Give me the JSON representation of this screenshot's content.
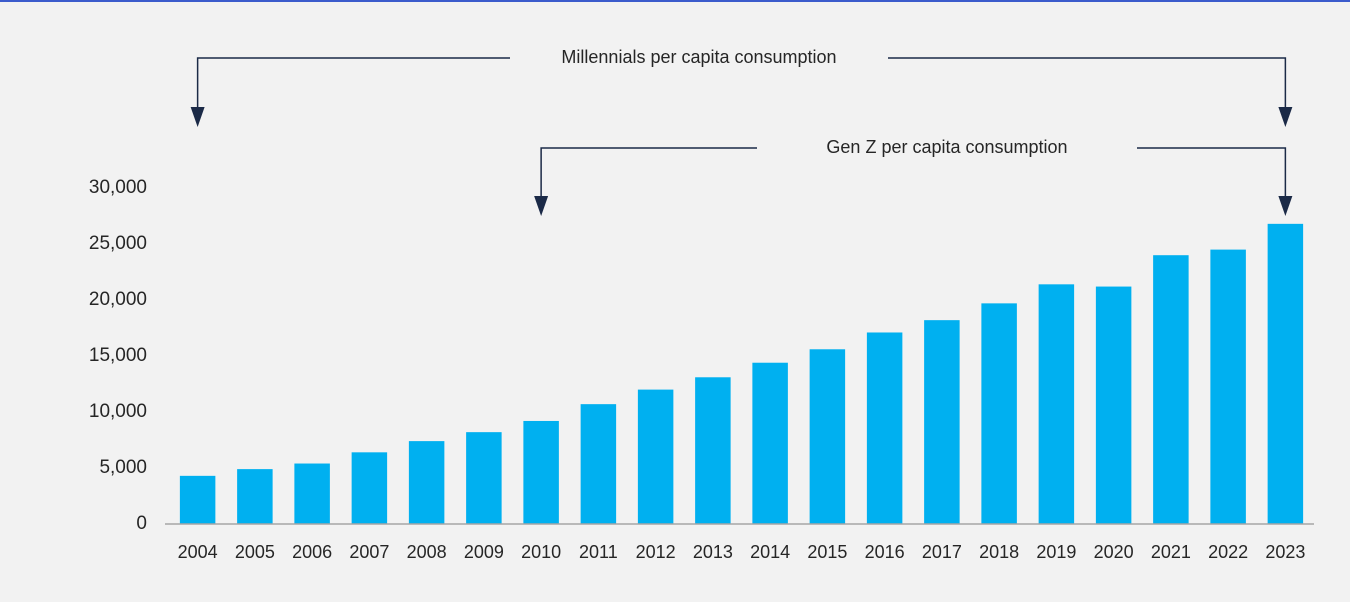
{
  "chart_data": {
    "type": "bar",
    "categories": [
      "2004",
      "2005",
      "2006",
      "2007",
      "2008",
      "2009",
      "2010",
      "2011",
      "2012",
      "2013",
      "2014",
      "2015",
      "2016",
      "2017",
      "2018",
      "2019",
      "2020",
      "2021",
      "2022",
      "2023"
    ],
    "values": [
      4300,
      4900,
      5400,
      6400,
      7400,
      8200,
      9200,
      10700,
      12000,
      13100,
      14400,
      15600,
      17100,
      18200,
      19700,
      21400,
      21200,
      24000,
      24500,
      26800
    ],
    "color": "#00b0f0",
    "ylim": [
      0,
      30000
    ],
    "yticks": [
      0,
      {
        "value": 5000,
        "label": "5,000"
      },
      {
        "value": 10000,
        "label": "10,000"
      },
      {
        "value": 15000,
        "label": "15,000"
      },
      {
        "value": 20000,
        "label": "20,000"
      },
      {
        "value": 25000,
        "label": "25,000"
      },
      {
        "value": 30000,
        "label": "30,000"
      }
    ],
    "grid": false,
    "annotations": [
      "Millennials per capita consumption",
      "Gen Z per capita consumption"
    ]
  }
}
